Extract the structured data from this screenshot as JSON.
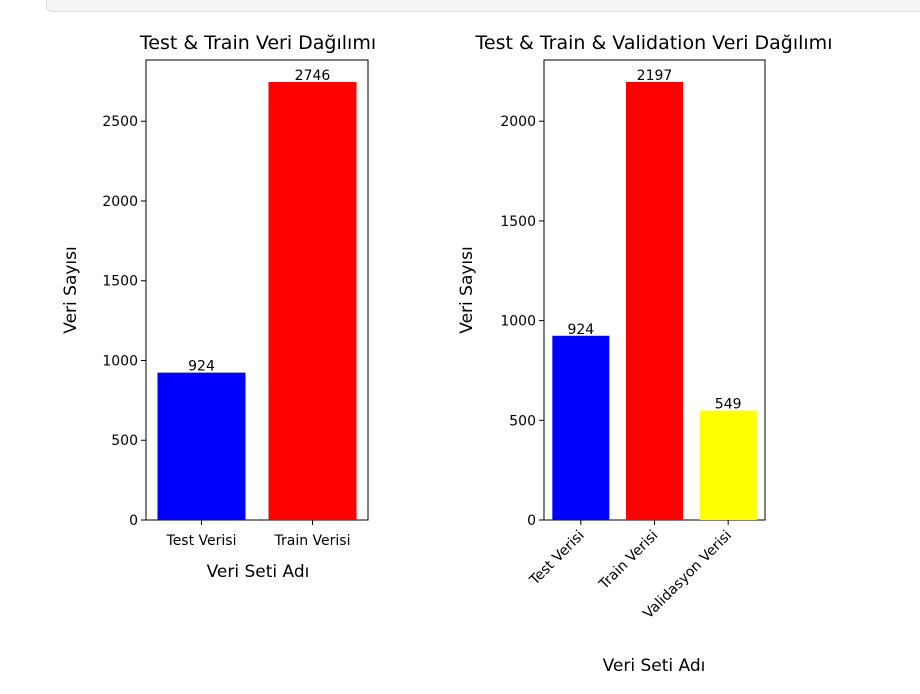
{
  "chart_data": [
    {
      "type": "bar",
      "title": "Test & Train Veri Dağılımı",
      "xlabel": "Veri Seti Adı",
      "ylabel": "Veri Sayısı",
      "categories": [
        "Test Verisi",
        "Train Verisi"
      ],
      "values": [
        924,
        2746
      ],
      "value_labels": [
        "924",
        "2746"
      ],
      "colors": [
        "#0000ff",
        "#ff0000"
      ],
      "ylim": [
        0,
        2884
      ],
      "yticks": [
        0,
        500,
        1000,
        1500,
        2000,
        2500
      ],
      "ytick_labels": [
        "0",
        "500",
        "1000",
        "1500",
        "2000",
        "2500"
      ],
      "xtick_rotation": 0,
      "grid": false
    },
    {
      "type": "bar",
      "title": "Test & Train & Validation Veri Dağılımı",
      "xlabel": "Veri Seti Adı",
      "ylabel": "Veri Sayısı",
      "categories": [
        "Test Verisi",
        "Train Verisi",
        "Validasyon Verisi"
      ],
      "values": [
        924,
        2197,
        549
      ],
      "value_labels": [
        "924",
        "2197",
        "549"
      ],
      "colors": [
        "#0000ff",
        "#ff0000",
        "#ffff00"
      ],
      "ylim": [
        0,
        2307
      ],
      "yticks": [
        0,
        500,
        1000,
        1500,
        2000
      ],
      "ytick_labels": [
        "0",
        "500",
        "1000",
        "1500",
        "2000"
      ],
      "xtick_rotation": -45,
      "grid": false
    }
  ]
}
